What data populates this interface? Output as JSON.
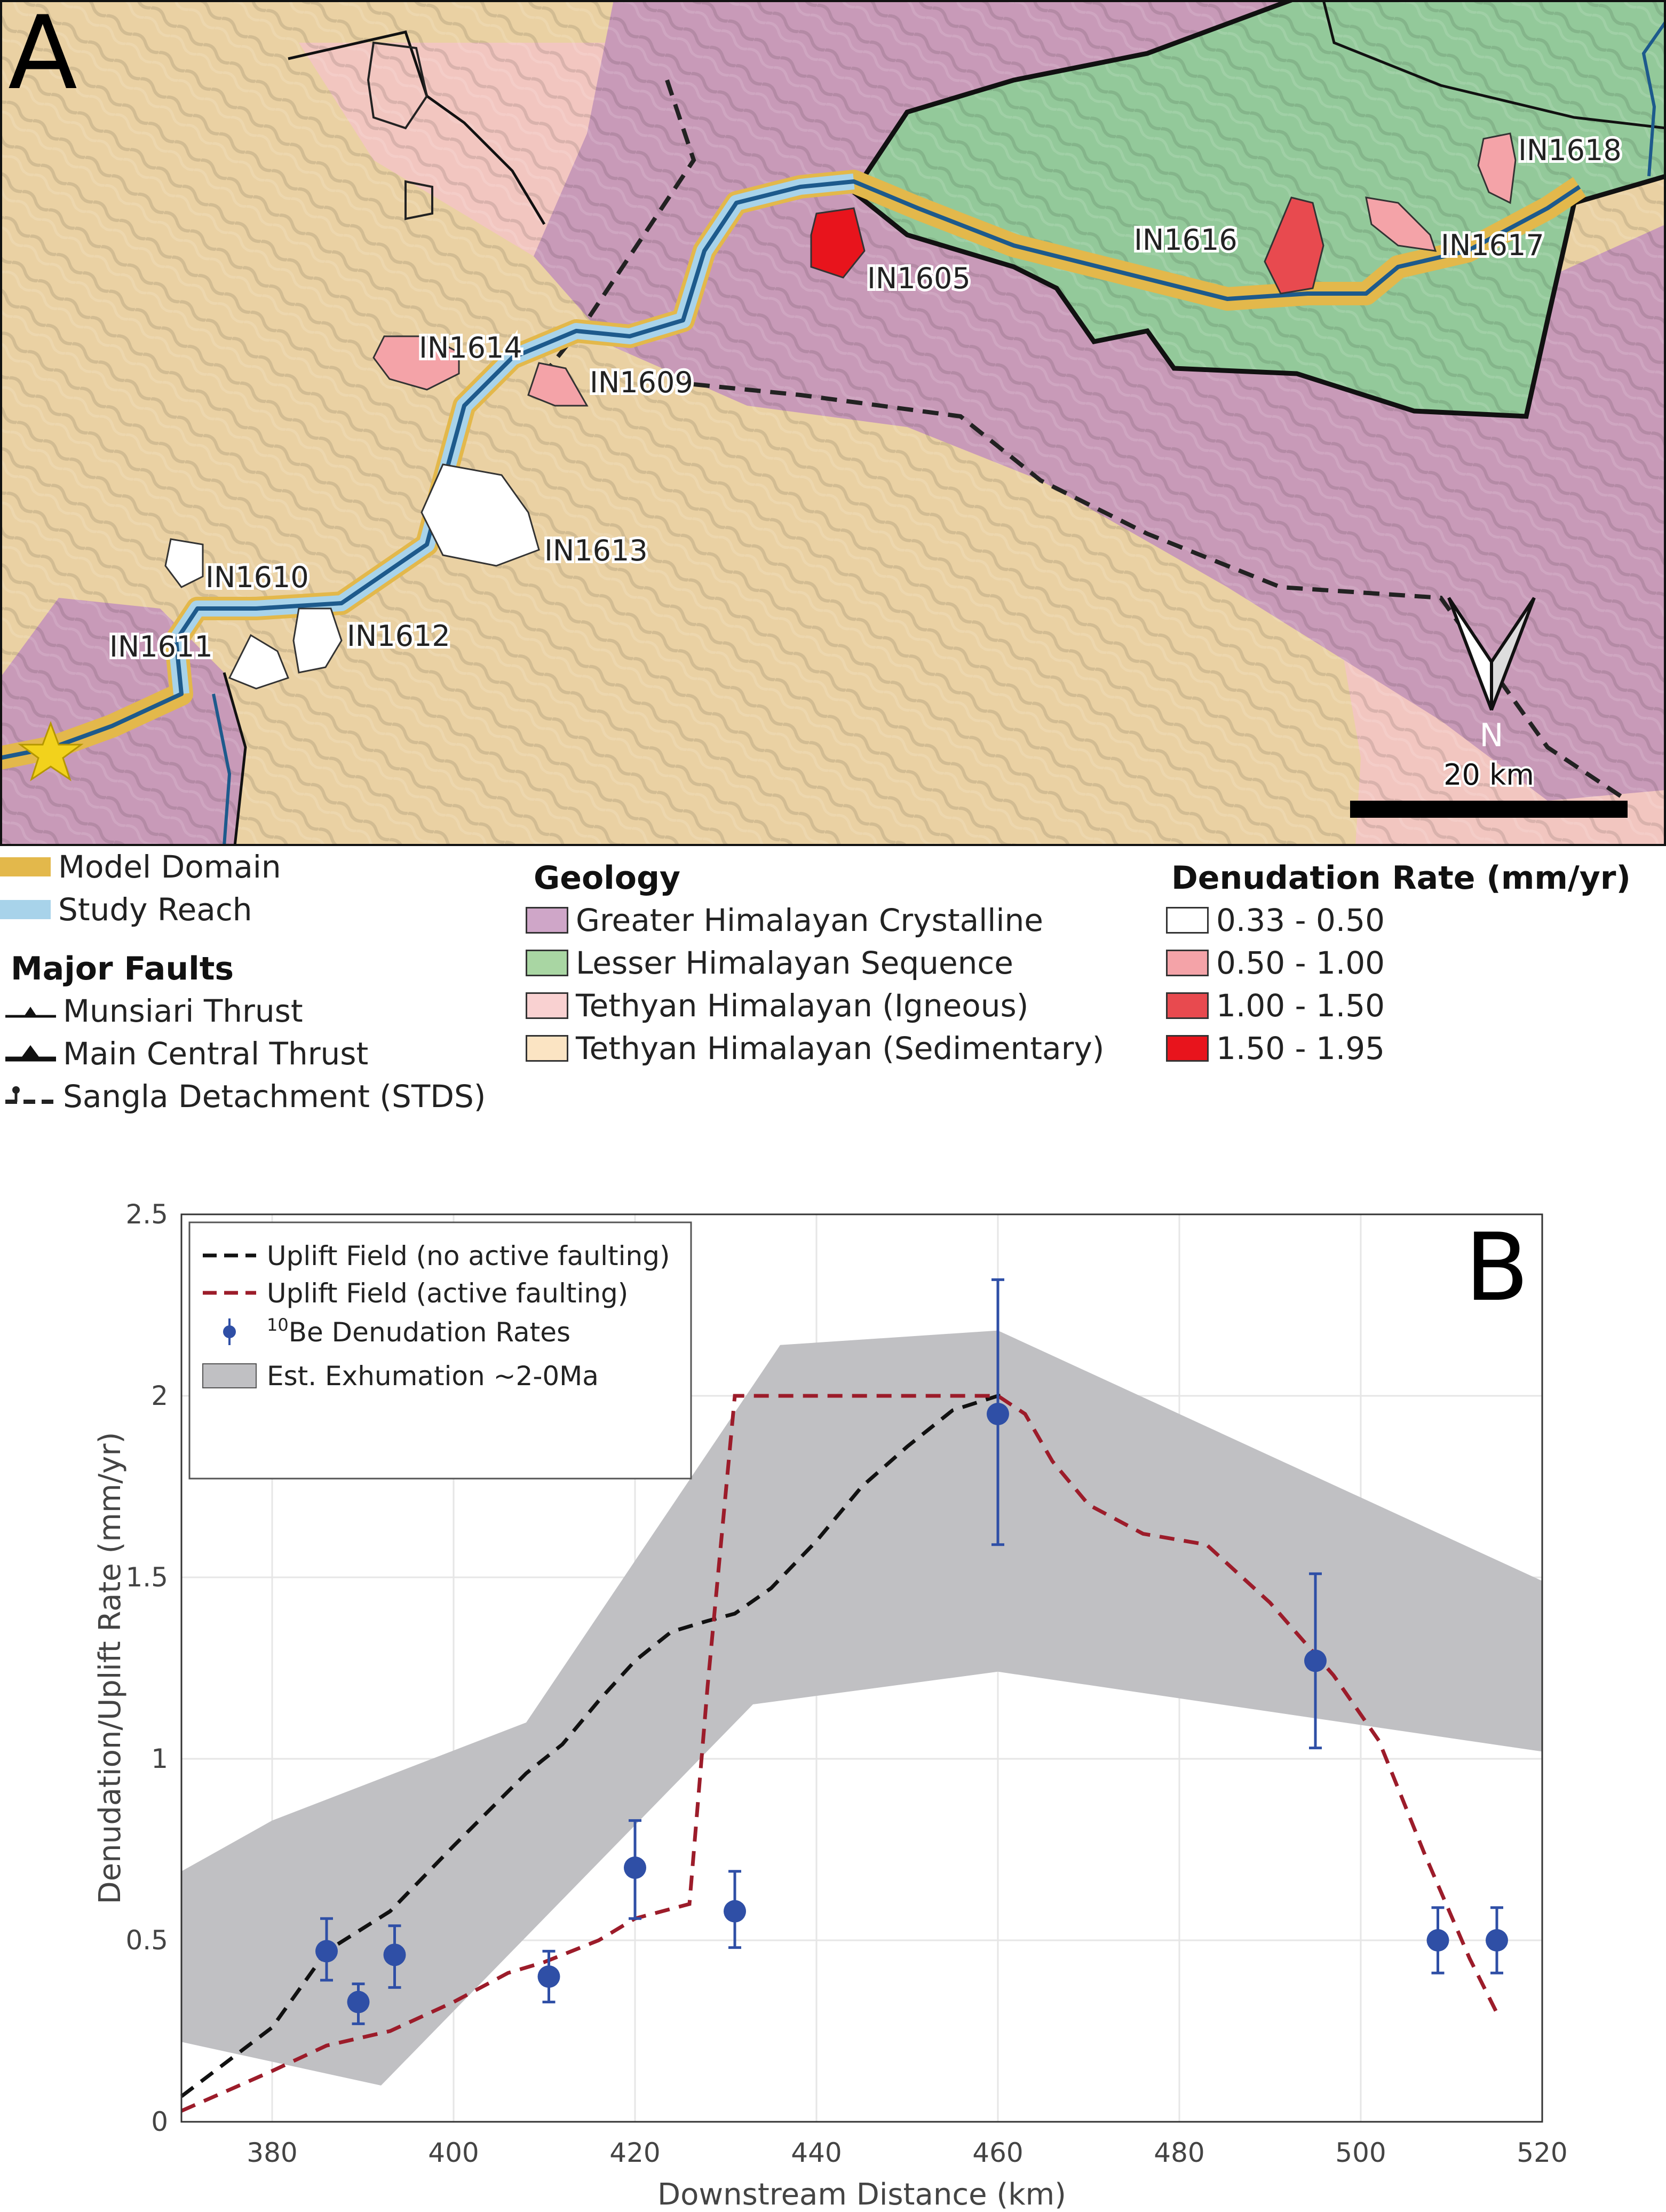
{
  "panel_a": {
    "panel_label": "A",
    "north_label": "N",
    "scale_label": "20 km",
    "basin_labels": [
      "IN1618",
      "IN1616",
      "IN1617",
      "IN1605",
      "IN1614",
      "IN1609",
      "IN1613",
      "IN1610",
      "IN1611",
      "IN1612"
    ],
    "basin_colors": {
      "IN1618": "#f4a3a8",
      "IN1616": "#e84a4f",
      "IN1617": "#f4a3a8",
      "IN1605": "#e8141c",
      "IN1614": "#f4a3a8",
      "IN1609": "#f4a3a8",
      "IN1613": "#ffffff",
      "IN1610": "#ffffff",
      "IN1611": "#ffffff",
      "IN1612": "#ffffff"
    },
    "geology_colors": {
      "greater": "#c89ab8",
      "lesser": "#93c99a",
      "tethyan_igneous": "#f2c6c0",
      "tethyan_sedimentary": "#ead1a3"
    },
    "model_domain_color": "#e3b84b",
    "study_reach_color": "#a8d3ea"
  },
  "legend": {
    "model_domain": "Model Domain",
    "study_reach": "Study Reach",
    "faults_title": "Major Faults",
    "faults": [
      "Munsiari Thrust",
      "Main Central Thrust",
      "Sangla Detachment (STDS)"
    ],
    "geology_title": "Geology",
    "geology": [
      {
        "label": "Greater Himalayan Crystalline",
        "color": "#cfa6c8"
      },
      {
        "label": "Lesser Himalayan Sequence",
        "color": "#a9d6a3"
      },
      {
        "label": "Tethyan Himalayan (Igneous)",
        "color": "#f9d1d1"
      },
      {
        "label": "Tethyan Himalayan (Sedimentary)",
        "color": "#fbe4c3"
      }
    ],
    "denudation_title": "Denudation Rate (mm/yr)",
    "denudation": [
      {
        "label": "0.33 - 0.50",
        "color": "#ffffff"
      },
      {
        "label": "0.50 - 1.00",
        "color": "#f4a3a8"
      },
      {
        "label": "1.00 - 1.50",
        "color": "#e84a4f"
      },
      {
        "label": "1.50 - 1.95",
        "color": "#e8141c"
      }
    ]
  },
  "chart_data": {
    "type": "line",
    "panel_label": "B",
    "xlabel": "Downstream Distance (km)",
    "ylabel": "Denudation/Uplift Rate (mm/yr)",
    "xlim": [
      370,
      520
    ],
    "ylim": [
      0,
      2.5
    ],
    "xticks": [
      "380",
      "400",
      "420",
      "440",
      "460",
      "480",
      "500",
      "520"
    ],
    "yticks": [
      "0",
      "0.5",
      "1",
      "1.5",
      "2",
      "2.5"
    ],
    "grid": true,
    "legend_position": "top-left",
    "legend": {
      "no_active": "Uplift Field (no active faulting)",
      "active": "Uplift Field (active faulting)",
      "be_superscript": "10",
      "be_rest": "Be Denudation Rates",
      "exhumation": "Est. Exhumation ~2-0Ma"
    },
    "colors": {
      "no_active": "#111111",
      "active": "#9c1c2a",
      "points": "#2f4fa6",
      "band": "#c0c0c3"
    },
    "series": [
      {
        "name": "Uplift Field (no active faulting)",
        "x": [
          370,
          380,
          386,
          393,
          400,
          408,
          412,
          416,
          420,
          424,
          428,
          431,
          435,
          440,
          445,
          450,
          455,
          460,
          461
        ],
        "y": [
          0.07,
          0.26,
          0.47,
          0.58,
          0.76,
          0.96,
          1.04,
          1.16,
          1.27,
          1.35,
          1.38,
          1.4,
          1.47,
          1.6,
          1.75,
          1.86,
          1.96,
          2.0,
          2.0
        ]
      },
      {
        "name": "Uplift Field (active faulting)",
        "x": [
          370,
          380,
          386,
          393,
          400,
          406,
          410,
          416,
          420,
          426,
          428,
          431,
          440,
          450,
          460,
          463,
          466,
          470,
          476,
          483,
          490,
          497,
          502,
          507,
          512,
          515
        ],
        "y": [
          0.03,
          0.14,
          0.21,
          0.25,
          0.33,
          0.41,
          0.44,
          0.5,
          0.56,
          0.6,
          1.2,
          2.0,
          2.0,
          2.0,
          2.0,
          1.95,
          1.82,
          1.7,
          1.62,
          1.59,
          1.43,
          1.23,
          1.05,
          0.74,
          0.45,
          0.3
        ]
      }
    ],
    "points": [
      {
        "x": 386,
        "y": 0.47,
        "lo": 0.39,
        "hi": 0.56
      },
      {
        "x": 389.5,
        "y": 0.33,
        "lo": 0.27,
        "hi": 0.38
      },
      {
        "x": 393.5,
        "y": 0.46,
        "lo": 0.37,
        "hi": 0.54
      },
      {
        "x": 410.5,
        "y": 0.4,
        "lo": 0.33,
        "hi": 0.47
      },
      {
        "x": 420,
        "y": 0.7,
        "lo": 0.56,
        "hi": 0.83
      },
      {
        "x": 431,
        "y": 0.58,
        "lo": 0.48,
        "hi": 0.69
      },
      {
        "x": 460,
        "y": 1.95,
        "lo": 1.59,
        "hi": 2.32
      },
      {
        "x": 495,
        "y": 1.27,
        "lo": 1.03,
        "hi": 1.51
      },
      {
        "x": 508.5,
        "y": 0.5,
        "lo": 0.41,
        "hi": 0.59
      },
      {
        "x": 515,
        "y": 0.5,
        "lo": 0.41,
        "hi": 0.59
      }
    ],
    "band": {
      "upper": [
        [
          370,
          0.69
        ],
        [
          380,
          0.83
        ],
        [
          408,
          1.1
        ],
        [
          436,
          2.14
        ],
        [
          460,
          2.18
        ],
        [
          520,
          1.49
        ]
      ],
      "lower": [
        [
          520,
          1.02
        ],
        [
          460,
          1.24
        ],
        [
          433,
          1.15
        ],
        [
          392,
          0.1
        ],
        [
          370,
          0.22
        ]
      ]
    }
  }
}
